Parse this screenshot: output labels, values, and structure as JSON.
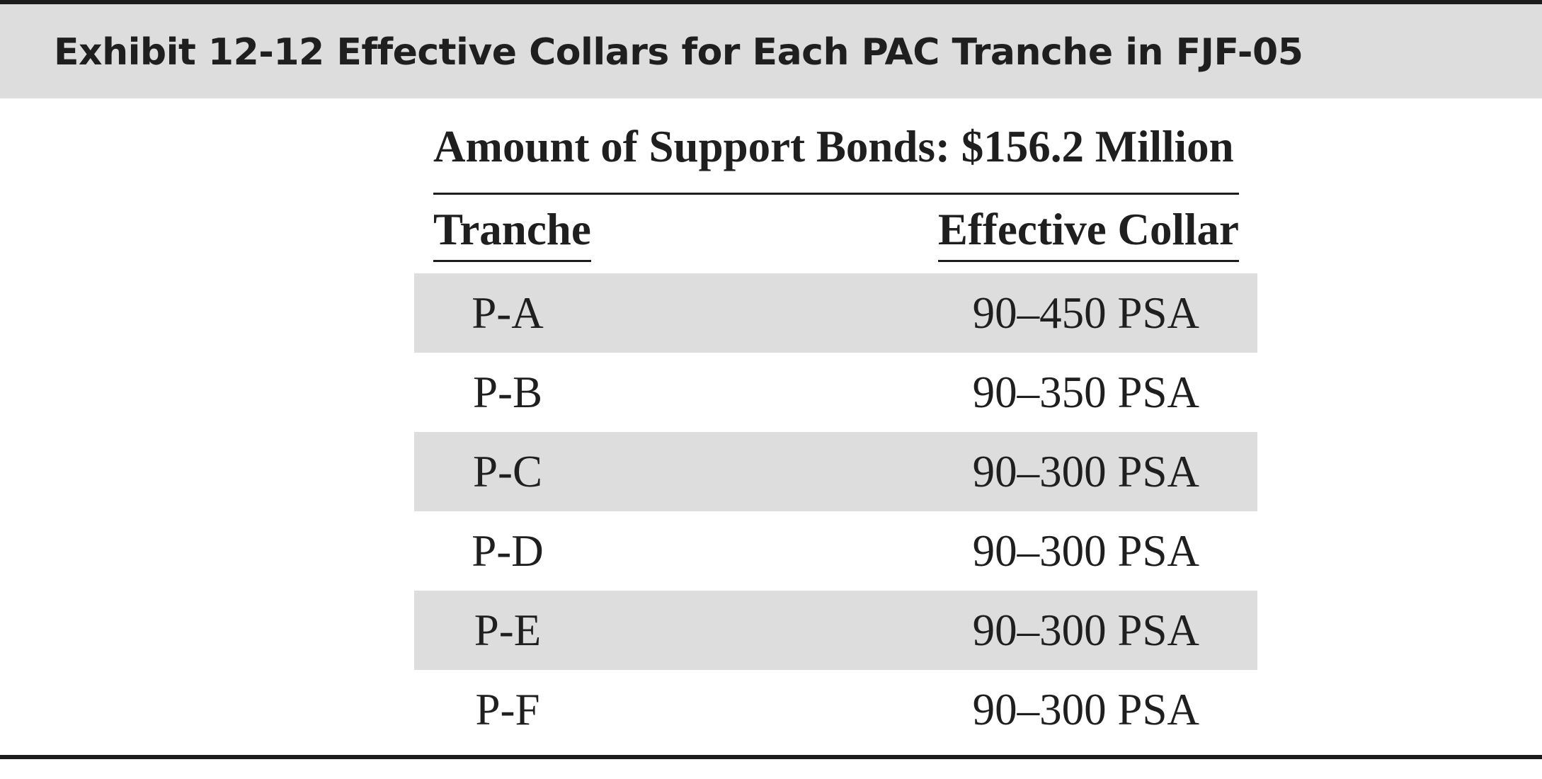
{
  "exhibit": {
    "title": "Exhibit 12-12  Effective Collars for Each PAC Tranche in FJF-05"
  },
  "table": {
    "caption": "Amount of Support Bonds: $156.2 Million",
    "headers": {
      "tranche": "Tranche",
      "collar": "Effective Collar"
    },
    "rows": [
      {
        "tranche": "P-A",
        "collar": "90–450 PSA"
      },
      {
        "tranche": "P-B",
        "collar": "90–350 PSA"
      },
      {
        "tranche": "P-C",
        "collar": "90–300 PSA"
      },
      {
        "tranche": "P-D",
        "collar": "90–300 PSA"
      },
      {
        "tranche": "P-E",
        "collar": "90–300 PSA"
      },
      {
        "tranche": "P-F",
        "collar": "90–300 PSA"
      }
    ]
  },
  "colors": {
    "band": "#dddddd",
    "text": "#1f1f1f",
    "rule": "#1c1c1c"
  }
}
